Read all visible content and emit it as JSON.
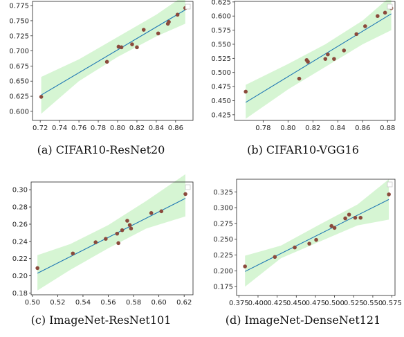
{
  "chart_data": [
    {
      "type": "scatter",
      "caption": "(a)  CIFAR10-ResNet20",
      "xlim": [
        0.712,
        0.878
      ],
      "ylim": [
        0.585,
        0.782
      ],
      "xticks": [
        0.72,
        0.74,
        0.76,
        0.78,
        0.8,
        0.82,
        0.84,
        0.86
      ],
      "yticks": [
        0.6,
        0.625,
        0.65,
        0.675,
        0.7,
        0.725,
        0.75,
        0.775
      ],
      "xdec": 2,
      "ydec": 3,
      "points": [
        [
          0.721,
          0.624
        ],
        [
          0.789,
          0.682
        ],
        [
          0.801,
          0.707
        ],
        [
          0.804,
          0.706
        ],
        [
          0.815,
          0.711
        ],
        [
          0.82,
          0.706
        ],
        [
          0.827,
          0.735
        ],
        [
          0.842,
          0.729
        ],
        [
          0.852,
          0.745
        ],
        [
          0.853,
          0.748
        ],
        [
          0.862,
          0.76
        ],
        [
          0.87,
          0.771
        ]
      ],
      "fit": [
        [
          0.721,
          0.627
        ],
        [
          0.87,
          0.768
        ]
      ],
      "band_x": [
        0.721,
        0.76,
        0.8,
        0.84,
        0.87
      ],
      "band_lo": [
        0.596,
        0.65,
        0.69,
        0.724,
        0.745
      ],
      "band_hi": [
        0.657,
        0.686,
        0.723,
        0.76,
        0.793
      ],
      "grid": false,
      "legend": "top-right",
      "colors": {
        "points": "#8b4a3c",
        "fit": "#1f77b4",
        "band": "#d6f5d3"
      }
    },
    {
      "type": "scatter",
      "caption": "(b)  CIFAR10-VGG16",
      "xlim": [
        0.757,
        0.886
      ],
      "ylim": [
        0.415,
        0.626
      ],
      "xticks": [
        0.78,
        0.8,
        0.82,
        0.84,
        0.86,
        0.88
      ],
      "yticks": [
        0.425,
        0.45,
        0.475,
        0.5,
        0.525,
        0.55,
        0.575,
        0.6,
        0.625
      ],
      "xdec": 2,
      "ydec": 3,
      "points": [
        [
          0.766,
          0.466
        ],
        [
          0.809,
          0.489
        ],
        [
          0.815,
          0.522
        ],
        [
          0.816,
          0.519
        ],
        [
          0.83,
          0.524
        ],
        [
          0.832,
          0.532
        ],
        [
          0.837,
          0.524
        ],
        [
          0.845,
          0.539
        ],
        [
          0.855,
          0.568
        ],
        [
          0.862,
          0.582
        ],
        [
          0.872,
          0.6
        ],
        [
          0.878,
          0.606
        ],
        [
          0.883,
          0.614
        ]
      ],
      "fit": [
        [
          0.766,
          0.447
        ],
        [
          0.883,
          0.604
        ]
      ],
      "band_x": [
        0.766,
        0.8,
        0.83,
        0.86,
        0.883
      ],
      "band_lo": [
        0.418,
        0.47,
        0.51,
        0.55,
        0.575
      ],
      "band_hi": [
        0.478,
        0.515,
        0.55,
        0.592,
        0.636
      ],
      "grid": false,
      "legend": "top-right",
      "colors": {
        "points": "#8b4a3c",
        "fit": "#1f77b4",
        "band": "#d6f5d3"
      }
    },
    {
      "type": "scatter",
      "caption": "(c)  ImageNet-ResNet101",
      "xlim": [
        0.499,
        0.627
      ],
      "ylim": [
        0.178,
        0.309
      ],
      "xticks": [
        0.5,
        0.52,
        0.54,
        0.56,
        0.58,
        0.6,
        0.62
      ],
      "yticks": [
        0.18,
        0.2,
        0.22,
        0.24,
        0.26,
        0.28,
        0.3
      ],
      "xdec": 2,
      "ydec": 2,
      "points": [
        [
          0.504,
          0.209
        ],
        [
          0.532,
          0.226
        ],
        [
          0.55,
          0.239
        ],
        [
          0.558,
          0.243
        ],
        [
          0.567,
          0.249
        ],
        [
          0.568,
          0.238
        ],
        [
          0.571,
          0.253
        ],
        [
          0.575,
          0.264
        ],
        [
          0.577,
          0.259
        ],
        [
          0.578,
          0.255
        ],
        [
          0.594,
          0.273
        ],
        [
          0.602,
          0.275
        ],
        [
          0.621,
          0.295
        ]
      ],
      "fit": [
        [
          0.504,
          0.203
        ],
        [
          0.621,
          0.29
        ]
      ],
      "band_x": [
        0.504,
        0.53,
        0.56,
        0.59,
        0.621
      ],
      "band_lo": [
        0.183,
        0.207,
        0.232,
        0.255,
        0.269
      ],
      "band_hi": [
        0.224,
        0.237,
        0.259,
        0.287,
        0.318
      ],
      "grid": false,
      "legend": "top-right",
      "colors": {
        "points": "#8b4a3c",
        "fit": "#1f77b4",
        "band": "#d6f5d3"
      }
    },
    {
      "type": "scatter",
      "caption": "(d)  ImageNet-DenseNet121",
      "xlim": [
        0.372,
        0.579
      ],
      "ylim": [
        0.161,
        0.345
      ],
      "xticks": [
        0.375,
        0.4,
        0.425,
        0.45,
        0.475,
        0.5,
        0.525,
        0.55,
        0.575
      ],
      "yticks": [
        0.175,
        0.2,
        0.225,
        0.25,
        0.275,
        0.3,
        0.325
      ],
      "xdec": 3,
      "ydec": 3,
      "points": [
        [
          0.383,
          0.207
        ],
        [
          0.422,
          0.222
        ],
        [
          0.448,
          0.237
        ],
        [
          0.467,
          0.243
        ],
        [
          0.476,
          0.249
        ],
        [
          0.496,
          0.271
        ],
        [
          0.5,
          0.268
        ],
        [
          0.514,
          0.283
        ],
        [
          0.519,
          0.289
        ],
        [
          0.527,
          0.284
        ],
        [
          0.534,
          0.284
        ],
        [
          0.571,
          0.321
        ]
      ],
      "fit": [
        [
          0.383,
          0.199
        ],
        [
          0.571,
          0.313
        ]
      ],
      "band_x": [
        0.383,
        0.43,
        0.48,
        0.53,
        0.571
      ],
      "band_lo": [
        0.175,
        0.22,
        0.246,
        0.272,
        0.281
      ],
      "band_hi": [
        0.224,
        0.24,
        0.273,
        0.305,
        0.345
      ],
      "grid": false,
      "legend": "top-right",
      "colors": {
        "points": "#8b4a3c",
        "fit": "#1f77b4",
        "band": "#d6f5d3"
      }
    }
  ]
}
